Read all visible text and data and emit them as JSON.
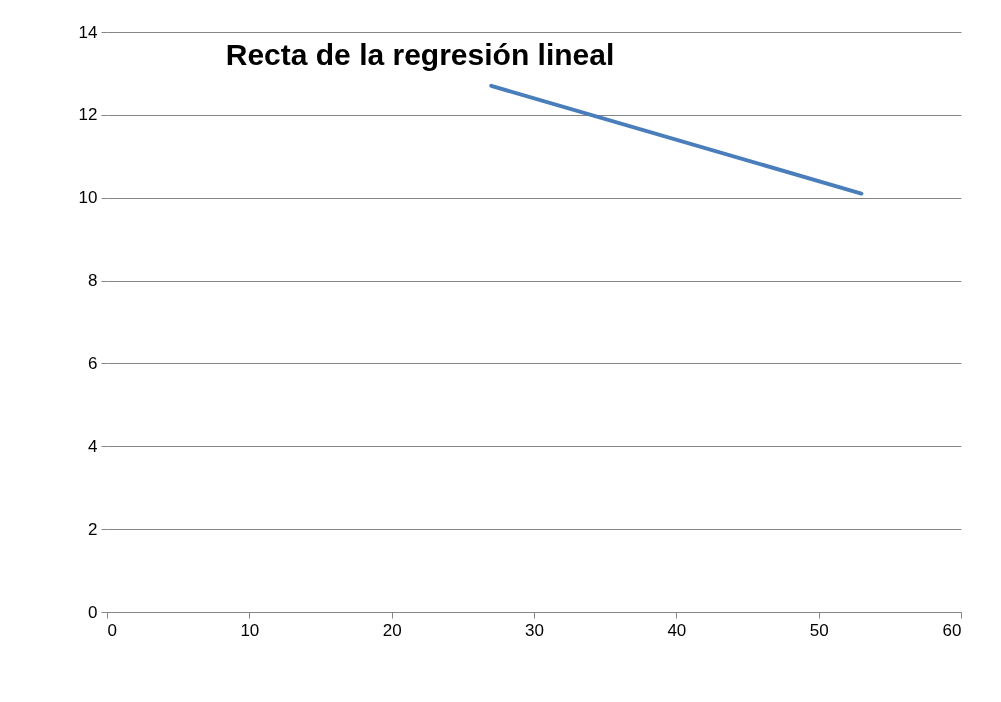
{
  "chart_data": {
    "type": "line",
    "title": "Recta de la regresión lineal",
    "x": [
      27,
      53
    ],
    "series": [
      {
        "color": "#4a7ebb",
        "values": [
          12.7,
          10.1
        ]
      }
    ],
    "xlim": [
      0,
      60
    ],
    "xticks": [
      0,
      10,
      20,
      30,
      40,
      50,
      60
    ],
    "ylim": [
      0,
      14
    ],
    "yticks": [
      0,
      2,
      4,
      6,
      8,
      10,
      12,
      14
    ],
    "grid": "y",
    "marker": "none",
    "line_style": "solid"
  }
}
